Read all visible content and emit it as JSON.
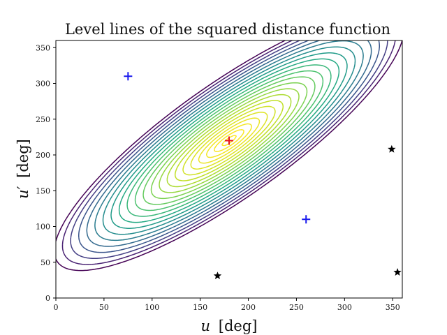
{
  "chart_data": {
    "type": "contour",
    "title": "Level lines of the squared distance function",
    "xlabel_var": "u",
    "ylabel_var": "u′",
    "unit": "[deg]",
    "xlim": [
      0,
      360
    ],
    "ylim": [
      0,
      360
    ],
    "xticks": [
      "0",
      "50",
      "100",
      "150",
      "200",
      "250",
      "300",
      "350"
    ],
    "yticks": [
      "0",
      "50",
      "100",
      "150",
      "200",
      "250",
      "300",
      "350"
    ],
    "center": {
      "x": 180,
      "y": 220
    },
    "markers": [
      {
        "symbol": "+",
        "x": 180,
        "y": 220,
        "color": "#e8141c"
      },
      {
        "symbol": "+",
        "x": 75,
        "y": 310,
        "color": "#1a1aee"
      },
      {
        "symbol": "+",
        "x": 260,
        "y": 110,
        "color": "#1a1aee"
      },
      {
        "symbol": "star",
        "x": 349,
        "y": 208,
        "color": "#000000"
      },
      {
        "symbol": "star",
        "x": 168,
        "y": 31,
        "color": "#000000"
      },
      {
        "symbol": "star",
        "x": 355,
        "y": 36,
        "color": "#000000"
      }
    ],
    "colormap": "viridis",
    "grid": false
  }
}
